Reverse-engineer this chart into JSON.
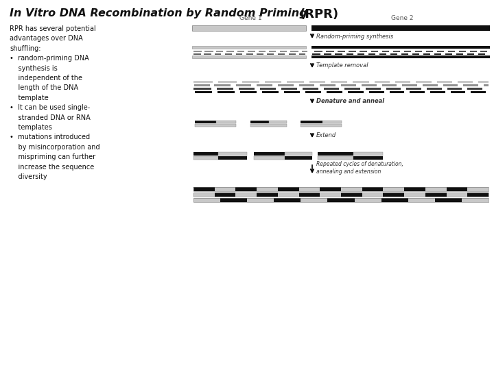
{
  "title": "In Vitro DNA Recombination by Random Priming",
  "title_rpr": "(RPR)",
  "bg_color": "#ffffff",
  "left_text": "RPR has several potential\nadvantages over DNA\nshuffling:\n•  random-priming DNA\n    synthesis is\n    independent of the\n    length of the DNA\n    template\n•  It can be used single-\n    stranded DNA or RNA\n    templates\n•  mutations introduced\n    by misincorporation and\n    mispriming can further\n    increase the sequence\n    diversity",
  "gene1_label": "Gene 1",
  "gene2_label": "Gene 2",
  "step_labels": [
    "Random-priming synthesis",
    "Template removal",
    "Denature and anneal",
    "Extend",
    "Repeated cycles of denaturation,\nannealing and extension"
  ],
  "gray_light": "#c8c8c8",
  "gray_mid": "#909090",
  "gray_dark": "#404040",
  "black": "#101010",
  "dna_border": "#888888"
}
